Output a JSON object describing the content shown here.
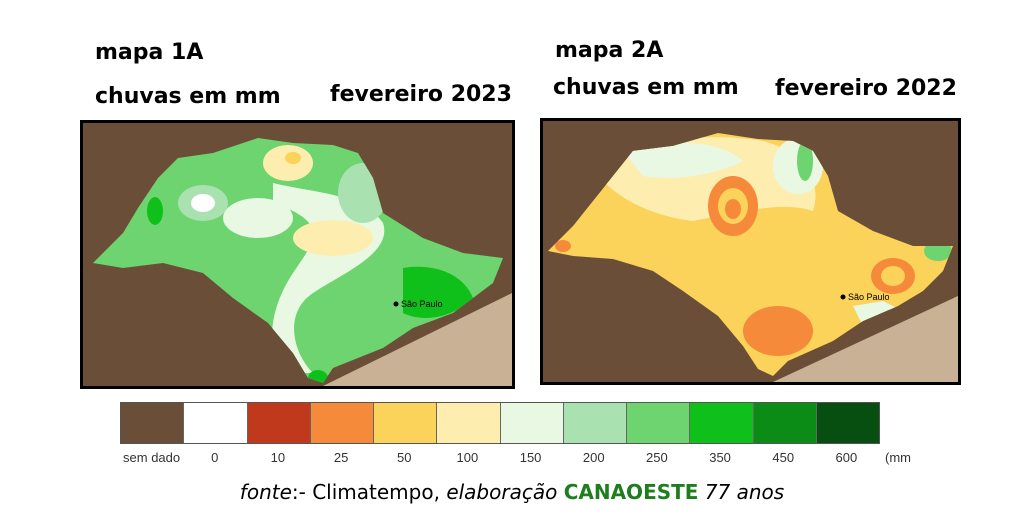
{
  "map1": {
    "label": "mapa 1A",
    "subtitle": "chuvas em mm",
    "period": "fevereiro 2023",
    "city_label": "São Paulo"
  },
  "map2": {
    "label": "mapa 2A",
    "subtitle": "chuvas em mm",
    "period": "fevereiro 2022",
    "city_label": "São Paulo"
  },
  "legend": {
    "unit": "(mm",
    "items": [
      {
        "label": "sem dado",
        "color": "#6a4e37"
      },
      {
        "label": "0",
        "color": "#ffffff"
      },
      {
        "label": "10",
        "color": "#c0391d"
      },
      {
        "label": "25",
        "color": "#f58a3a"
      },
      {
        "label": "50",
        "color": "#fbd25a"
      },
      {
        "label": "100",
        "color": "#fdeeb0"
      },
      {
        "label": "150",
        "color": "#e9f8e3"
      },
      {
        "label": "200",
        "color": "#a9e2b0"
      },
      {
        "label": "250",
        "color": "#6ed46f"
      },
      {
        "label": "350",
        "color": "#10c01a"
      },
      {
        "label": "450",
        "color": "#0a8c16"
      },
      {
        "label": "600",
        "color": "#064f10"
      }
    ]
  },
  "source": {
    "prefix": "fonte",
    "middle": ":- Climatempo, ",
    "elab": "elaboração",
    "org": "CANAOESTE",
    "suffix": "77 anos"
  }
}
